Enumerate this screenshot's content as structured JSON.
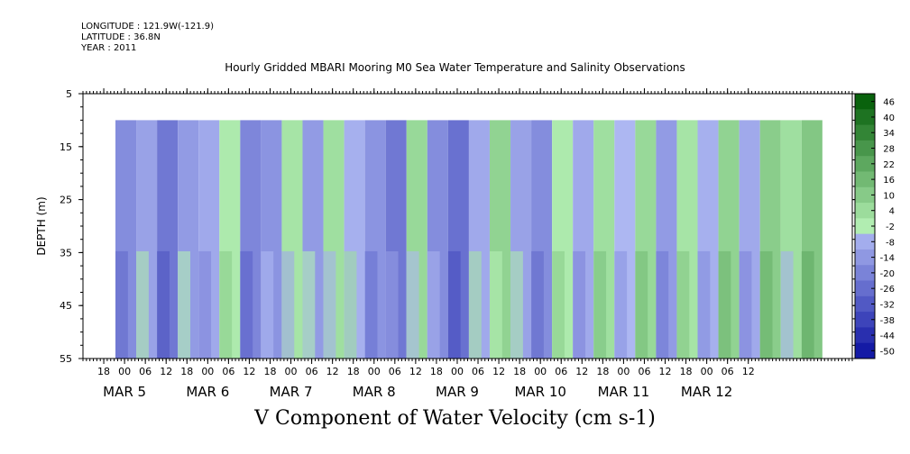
{
  "header": {
    "longitude": "LONGITUDE : 121.9W(-121.9)",
    "latitude": "LATITUDE : 36.8N",
    "year": "YEAR : 2011",
    "title": "Hourly Gridded MBARI Mooring M0 Sea Water Temperature and Salinity Observations"
  },
  "chart_data": {
    "type": "heatmap",
    "title": "Hourly Gridded MBARI Mooring M0 Sea Water Temperature and Salinity Observations",
    "xlabel": "V Component of Water Velocity (cm s-1)",
    "ylabel": "DEPTH (m)",
    "y_ticks": [
      5,
      15,
      25,
      35,
      45,
      55
    ],
    "y_inverted": true,
    "ylim": [
      5,
      55
    ],
    "x_hour_ticks": [
      "18",
      "00",
      "06",
      "12",
      "18",
      "00",
      "06",
      "12",
      "18",
      "00",
      "06",
      "12",
      "18",
      "00",
      "06",
      "12",
      "18",
      "00",
      "06",
      "12",
      "18",
      "00",
      "06",
      "12",
      "18",
      "00",
      "06",
      "12",
      "18",
      "00",
      "06",
      "12"
    ],
    "x_month_labels": [
      "MAR  5",
      "MAR  6",
      "MAR  7",
      "MAR  8",
      "MAR  9",
      "MAR 10",
      "MAR 11",
      "MAR 12"
    ],
    "colorbar_ticks": [
      46,
      40,
      34,
      28,
      22,
      16,
      10,
      4,
      -2,
      -8,
      -14,
      -20,
      -26,
      -32,
      -38,
      -44,
      -50
    ],
    "colorbar_range": [
      -50,
      50
    ],
    "depth_range_with_data": [
      10,
      55
    ],
    "bands": [
      {
        "start_hour": 0,
        "end_hour": 6,
        "value": -14
      },
      {
        "start_hour": 6,
        "end_hour": 12,
        "value": -8
      },
      {
        "start_hour": 12,
        "end_hour": 18,
        "value": -20
      },
      {
        "start_hour": 18,
        "end_hour": 24,
        "value": -10
      },
      {
        "start_hour": 24,
        "end_hour": 30,
        "value": -6
      },
      {
        "start_hour": 30,
        "end_hour": 36,
        "value": 2
      },
      {
        "start_hour": 36,
        "end_hour": 42,
        "value": -16
      },
      {
        "start_hour": 42,
        "end_hour": 48,
        "value": -12
      },
      {
        "start_hour": 48,
        "end_hour": 54,
        "value": 4
      },
      {
        "start_hour": 54,
        "end_hour": 60,
        "value": -10
      },
      {
        "start_hour": 60,
        "end_hour": 66,
        "value": 6
      },
      {
        "start_hour": 66,
        "end_hour": 72,
        "value": -4
      },
      {
        "start_hour": 72,
        "end_hour": 78,
        "value": -12
      },
      {
        "start_hour": 78,
        "end_hour": 84,
        "value": -20
      },
      {
        "start_hour": 84,
        "end_hour": 90,
        "value": 8
      },
      {
        "start_hour": 90,
        "end_hour": 96,
        "value": -14
      },
      {
        "start_hour": 96,
        "end_hour": 102,
        "value": -22
      },
      {
        "start_hour": 102,
        "end_hour": 108,
        "value": -6
      },
      {
        "start_hour": 108,
        "end_hour": 114,
        "value": 10
      },
      {
        "start_hour": 114,
        "end_hour": 120,
        "value": -8
      },
      {
        "start_hour": 120,
        "end_hour": 126,
        "value": -14
      },
      {
        "start_hour": 126,
        "end_hour": 132,
        "value": 2
      },
      {
        "start_hour": 132,
        "end_hour": 138,
        "value": -6
      },
      {
        "start_hour": 138,
        "end_hour": 144,
        "value": 6
      },
      {
        "start_hour": 144,
        "end_hour": 150,
        "value": -2
      },
      {
        "start_hour": 150,
        "end_hour": 156,
        "value": 8
      },
      {
        "start_hour": 156,
        "end_hour": 162,
        "value": -10
      },
      {
        "start_hour": 162,
        "end_hour": 168,
        "value": 4
      },
      {
        "start_hour": 168,
        "end_hour": 174,
        "value": -4
      },
      {
        "start_hour": 174,
        "end_hour": 180,
        "value": 10
      },
      {
        "start_hour": 180,
        "end_hour": 186,
        "value": -6
      },
      {
        "start_hour": 186,
        "end_hour": 192,
        "value": 12
      },
      {
        "start_hour": 192,
        "end_hour": 198,
        "value": 6
      },
      {
        "start_hour": 198,
        "end_hour": 204,
        "value": 14
      }
    ]
  }
}
